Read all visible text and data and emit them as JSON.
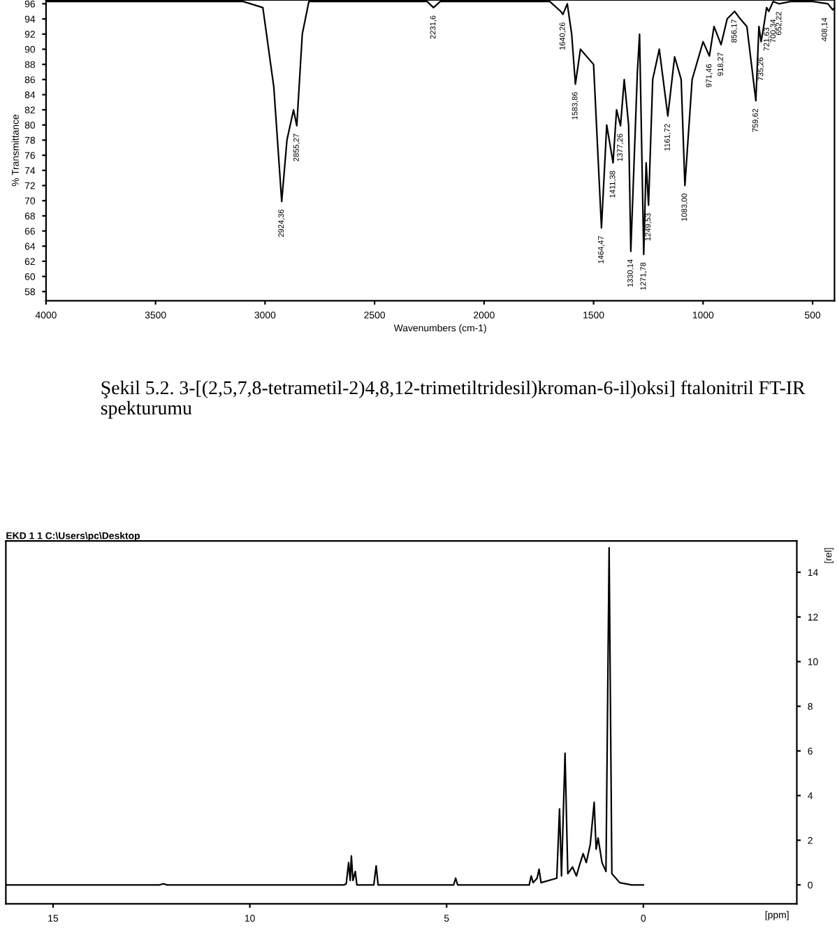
{
  "chart_data": [
    {
      "type": "line",
      "xlabel": "Wavenumbers (cm-1)",
      "ylabel": "% Transmittance",
      "xlim": [
        4000,
        400
      ],
      "ylim": [
        56.8,
        96.5
      ],
      "xticks": [
        4000,
        3500,
        3000,
        2500,
        2000,
        1500,
        1000,
        500
      ],
      "yticks": [
        96,
        94,
        92,
        90,
        88,
        86,
        84,
        82,
        80,
        78,
        76,
        74,
        72,
        70,
        68,
        66,
        64,
        62,
        60,
        58
      ],
      "grid": false,
      "legend": false,
      "series": [
        {
          "color": "#000000",
          "line_style": "solid",
          "x": [
            4000,
            3100,
            3010,
            2960,
            2924,
            2900,
            2870,
            2855,
            2830,
            2800,
            2260,
            2231,
            2200,
            1700,
            1650,
            1640,
            1620,
            1600,
            1583,
            1560,
            1500,
            1464,
            1440,
            1411,
            1395,
            1377,
            1360,
            1340,
            1330,
            1300,
            1290,
            1271,
            1260,
            1249,
            1230,
            1200,
            1161,
            1130,
            1100,
            1083,
            1050,
            1000,
            971,
            950,
            918,
            890,
            856,
            830,
            800,
            759,
            745,
            735,
            721,
            710,
            700,
            680,
            652,
            600,
            500,
            430,
            408,
            400
          ],
          "values": [
            96.3,
            96.3,
            95.5,
            85,
            69.9,
            78,
            82,
            79.9,
            92,
            96.3,
            96.3,
            95.5,
            96.3,
            96.3,
            95,
            94.6,
            96,
            92,
            85.4,
            90,
            88,
            66.4,
            80,
            75,
            82,
            79.9,
            86,
            80,
            63.3,
            87,
            92,
            62.9,
            75,
            69.4,
            86,
            90,
            81.2,
            89,
            86,
            72,
            86,
            91,
            89.1,
            93,
            90.6,
            94,
            95,
            94,
            93,
            83.2,
            93,
            91,
            93.4,
            95.5,
            95,
            96.3,
            96,
            96.3,
            96.3,
            96,
            95.2,
            95.5
          ]
        }
      ],
      "annotations": [
        {
          "text": "2924,36",
          "x": 2924,
          "y": 69.9
        },
        {
          "text": "2855,27",
          "x": 2855,
          "y": 79.9
        },
        {
          "text": "2231,6",
          "x": 2231,
          "y": 95.5
        },
        {
          "text": "1640,26",
          "x": 1640,
          "y": 94.6
        },
        {
          "text": "1583,86",
          "x": 1583,
          "y": 85.4
        },
        {
          "text": "1464,47",
          "x": 1464,
          "y": 66.4
        },
        {
          "text": "1411,38",
          "x": 1411,
          "y": 75
        },
        {
          "text": "1377,26",
          "x": 1377,
          "y": 79.9
        },
        {
          "text": "1330,14",
          "x": 1330,
          "y": 63.3
        },
        {
          "text": "1271,78",
          "x": 1271,
          "y": 62.9
        },
        {
          "text": "1249,53",
          "x": 1249,
          "y": 69.4
        },
        {
          "text": "1161,72",
          "x": 1161,
          "y": 81.2
        },
        {
          "text": "1083,00",
          "x": 1083,
          "y": 72
        },
        {
          "text": "971,46",
          "x": 971,
          "y": 89.1
        },
        {
          "text": "918,27",
          "x": 918,
          "y": 90.6
        },
        {
          "text": "856,17",
          "x": 856,
          "y": 95
        },
        {
          "text": "759,62",
          "x": 759,
          "y": 83.2
        },
        {
          "text": "735,26",
          "x": 735,
          "y": 91
        },
        {
          "text": "721,63",
          "x": 721,
          "y": 93.4
        },
        {
          "text": "700,34",
          "x": 700,
          "y": 95
        },
        {
          "text": "652,22",
          "x": 652,
          "y": 96
        },
        {
          "text": "408,14",
          "x": 408,
          "y": 95.2
        },
        "Şekil 5.2. 3-[(2,5,7,8-tetrametil-2)4,8,12-trimetiltridesil)kroman-6-il)oksi] ftalonitril FT-IR spekturumu"
      ]
    },
    {
      "type": "line",
      "title": "EKD 1 1 C:\\Users\\pc\\Desktop",
      "xlabel": "[ppm]",
      "ylabel": "[rel]",
      "xlim": [
        16.2,
        -3.9
      ],
      "ylim": [
        -0.85,
        15.4
      ],
      "xticks": [
        15,
        10,
        5,
        0
      ],
      "yticks": [
        0,
        2,
        4,
        6,
        8,
        10,
        12,
        14
      ],
      "grid": false,
      "legend": false,
      "series": [
        {
          "color": "#000000",
          "line_style": "solid",
          "x": [
            16.2,
            12.3,
            12.2,
            12.1,
            7.6,
            7.55,
            7.49,
            7.45,
            7.42,
            7.38,
            7.32,
            7.28,
            6.85,
            6.79,
            6.74,
            4.82,
            4.77,
            4.72,
            2.9,
            2.85,
            2.8,
            2.7,
            2.65,
            2.6,
            2.2,
            2.13,
            2.08,
            1.99,
            1.92,
            1.8,
            1.7,
            1.62,
            1.53,
            1.45,
            1.35,
            1.25,
            1.2,
            1.15,
            1.05,
            0.95,
            0.87,
            0.8,
            0.6,
            0.3,
            0.0
          ],
          "values": [
            0,
            0,
            0.05,
            0,
            0,
            0.05,
            1.0,
            0.2,
            1.3,
            0.2,
            0.6,
            0,
            0,
            0.85,
            0,
            0,
            0.3,
            0,
            0,
            0.4,
            0.1,
            0.3,
            0.7,
            0.1,
            0.3,
            3.4,
            0.4,
            5.9,
            0.5,
            0.8,
            0.4,
            0.9,
            1.4,
            1.0,
            1.8,
            3.7,
            1.6,
            2.1,
            1.0,
            0.6,
            15.1,
            0.5,
            0.1,
            0,
            0
          ]
        }
      ]
    }
  ]
}
